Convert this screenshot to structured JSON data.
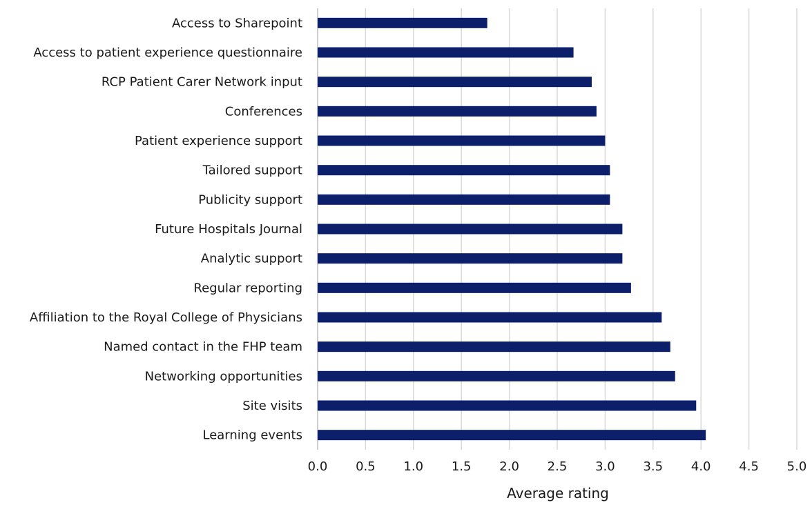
{
  "chart_data": {
    "type": "bar",
    "orientation": "horizontal",
    "categories": [
      "Access to Sharepoint",
      "Access to patient experience questionnaire",
      "RCP Patient Carer Network input",
      "Conferences",
      "Patient experience support",
      "Tailored support",
      "Publicity support",
      "Future Hospitals Journal",
      "Analytic support",
      "Regular reporting",
      "Affiliation to the Royal College of Physicians",
      "Named contact in the FHP team",
      "Networking opportunities",
      "Site visits",
      "Learning events"
    ],
    "values": [
      1.77,
      2.67,
      2.86,
      2.91,
      3.0,
      3.05,
      3.05,
      3.18,
      3.18,
      3.27,
      3.59,
      3.68,
      3.73,
      3.95,
      4.05
    ],
    "xlabel": "Average rating",
    "ylabel": "",
    "title": "",
    "xlim": [
      0,
      5
    ],
    "xticks": [
      "0.0",
      "0.5",
      "1.0",
      "1.5",
      "2.0",
      "2.5",
      "3.0",
      "3.5",
      "4.0",
      "4.5",
      "5.0"
    ],
    "grid": "vertical",
    "legend": "none",
    "bar_color": "#0c1f6b",
    "grid_color": "#d9d9d9",
    "axis_color": "#bfbfbf"
  }
}
